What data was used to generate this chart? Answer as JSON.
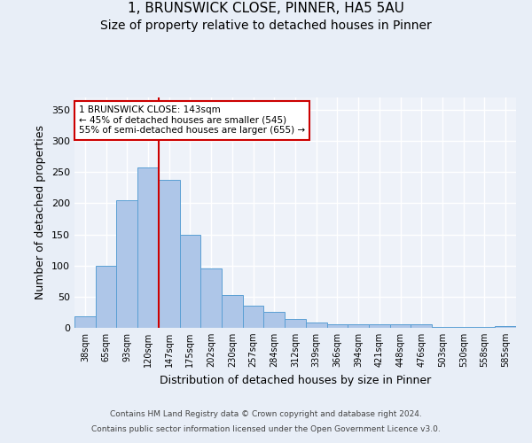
{
  "title": "1, BRUNSWICK CLOSE, PINNER, HA5 5AU",
  "subtitle": "Size of property relative to detached houses in Pinner",
  "xlabel": "Distribution of detached houses by size in Pinner",
  "ylabel": "Number of detached properties",
  "footer_line1": "Contains HM Land Registry data © Crown copyright and database right 2024.",
  "footer_line2": "Contains public sector information licensed under the Open Government Licence v3.0.",
  "categories": [
    "38sqm",
    "65sqm",
    "93sqm",
    "120sqm",
    "147sqm",
    "175sqm",
    "202sqm",
    "230sqm",
    "257sqm",
    "284sqm",
    "312sqm",
    "339sqm",
    "366sqm",
    "394sqm",
    "421sqm",
    "448sqm",
    "476sqm",
    "503sqm",
    "530sqm",
    "558sqm",
    "585sqm"
  ],
  "values": [
    18,
    100,
    205,
    257,
    238,
    149,
    95,
    52,
    35,
    26,
    14,
    8,
    6,
    5,
    5,
    5,
    5,
    2,
    1,
    1,
    3
  ],
  "bar_color": "#aec6e8",
  "bar_edge_color": "#5a9fd4",
  "vline_x": 3.5,
  "vline_color": "#cc0000",
  "annotation_text": "1 BRUNSWICK CLOSE: 143sqm\n← 45% of detached houses are smaller (545)\n55% of semi-detached houses are larger (655) →",
  "annotation_box_color": "#ffffff",
  "annotation_box_edge": "#cc0000",
  "ylim": [
    0,
    370
  ],
  "yticks": [
    0,
    50,
    100,
    150,
    200,
    250,
    300,
    350
  ],
  "bg_color": "#e8eef7",
  "plot_bg_color": "#eef2f9",
  "grid_color": "#ffffff",
  "title_fontsize": 11,
  "subtitle_fontsize": 10,
  "xlabel_fontsize": 9,
  "ylabel_fontsize": 9,
  "footer_fontsize": 6.5
}
